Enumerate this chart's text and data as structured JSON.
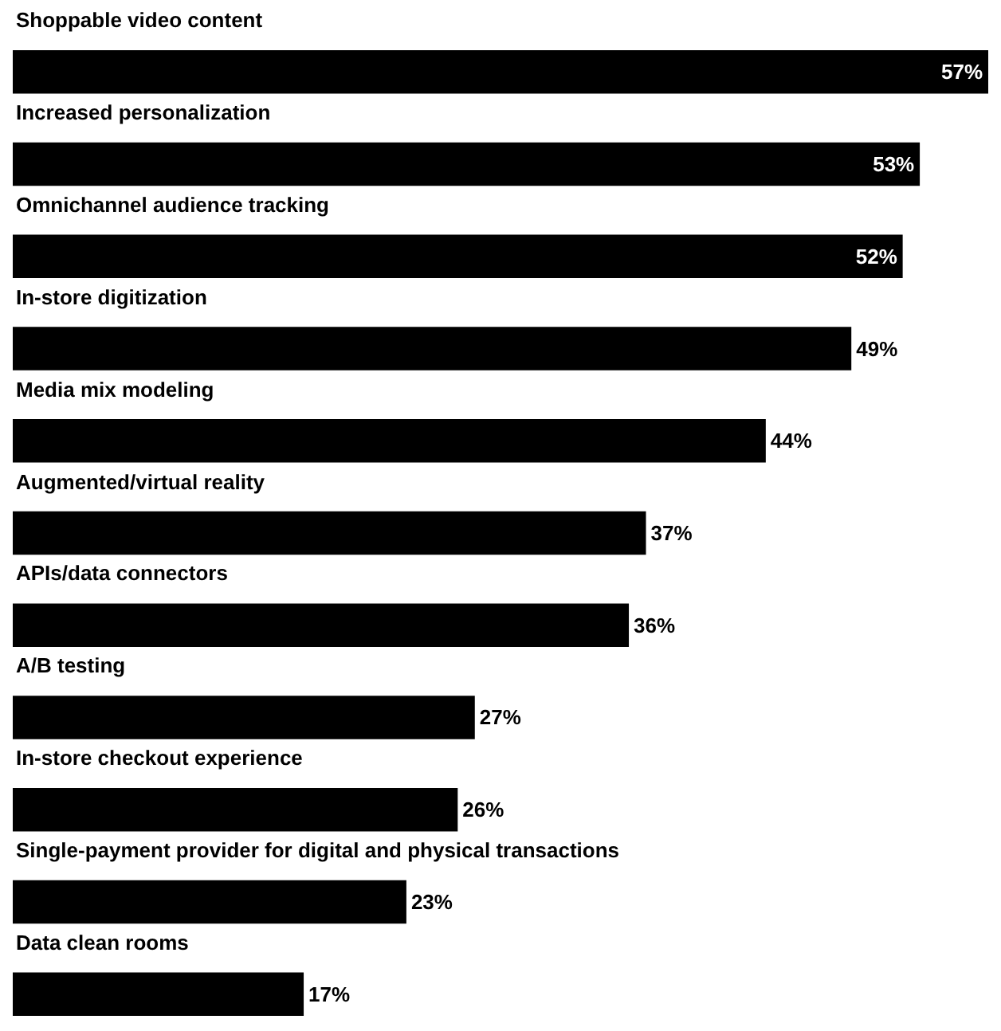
{
  "chart_data": {
    "type": "bar",
    "orientation": "horizontal",
    "categories": [
      "Shoppable video content",
      "Increased personalization",
      "Omnichannel audience tracking",
      "In-store digitization",
      "Media mix modeling",
      "Augmented/virtual reality",
      "APIs/data connectors",
      "A/B testing",
      "In-store checkout experience",
      "Single-payment provider for digital and physical transactions",
      "Data clean rooms"
    ],
    "values": [
      57,
      53,
      52,
      49,
      44,
      37,
      36,
      27,
      26,
      23,
      17
    ],
    "value_labels": [
      "57%",
      "53%",
      "52%",
      "49%",
      "44%",
      "37%",
      "36%",
      "27%",
      "26%",
      "23%",
      "17%"
    ],
    "color": "#000000",
    "xlim": [
      0,
      57
    ],
    "tick_labels": false
  }
}
